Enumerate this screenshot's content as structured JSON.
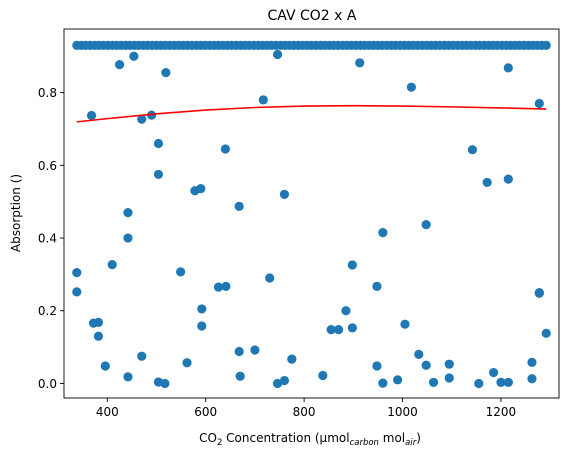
{
  "chart_data": {
    "type": "scatter",
    "title": "CAV CO2 x A",
    "xlabel": {
      "prefix": "CO",
      "sub1": "2",
      "mid": " Concentration (µmol",
      "sub2": "carbon",
      "mid2": " mol",
      "sub3": "air",
      "suffix": ")"
    },
    "ylabel": "Absorption ()",
    "xlim": [
      312,
      1318
    ],
    "ylim": [
      -0.04,
      0.975
    ],
    "xticks": [
      400,
      600,
      800,
      1000,
      1200
    ],
    "yticks": [
      0.0,
      0.2,
      0.4,
      0.6,
      0.8
    ],
    "ytick_labels": [
      "0.0",
      "0.2",
      "0.4",
      "0.6",
      "0.8"
    ],
    "colors": {
      "points": "#1f77b4",
      "fit_line": "#ff0000"
    },
    "saturation_level": 0.93,
    "saturation_x_range": [
      338,
      1292
    ],
    "saturation_step": 9,
    "points": [
      [
        338,
        0.305
      ],
      [
        338,
        0.252
      ],
      [
        368,
        0.737
      ],
      [
        372,
        0.166
      ],
      [
        382,
        0.168
      ],
      [
        382,
        0.13
      ],
      [
        396,
        0.048
      ],
      [
        410,
        0.327
      ],
      [
        425,
        0.877
      ],
      [
        442,
        0.47
      ],
      [
        442,
        0.4
      ],
      [
        442,
        0.018
      ],
      [
        454,
        0.9
      ],
      [
        470,
        0.727
      ],
      [
        470,
        0.075
      ],
      [
        490,
        0.738
      ],
      [
        504,
        0.66
      ],
      [
        504,
        0.575
      ],
      [
        504,
        0.004
      ],
      [
        517,
        0.0
      ],
      [
        519,
        0.855
      ],
      [
        549,
        0.307
      ],
      [
        562,
        0.057
      ],
      [
        578,
        0.53
      ],
      [
        590,
        0.536
      ],
      [
        592,
        0.205
      ],
      [
        592,
        0.158
      ],
      [
        626,
        0.265
      ],
      [
        640,
        0.645
      ],
      [
        641,
        0.267
      ],
      [
        668,
        0.487
      ],
      [
        668,
        0.088
      ],
      [
        670,
        0.02
      ],
      [
        700,
        0.092
      ],
      [
        717,
        0.78
      ],
      [
        730,
        0.29
      ],
      [
        746,
        0.905
      ],
      [
        746,
        0.0
      ],
      [
        760,
        0.52
      ],
      [
        760,
        0.008
      ],
      [
        775,
        0.067
      ],
      [
        838,
        0.022
      ],
      [
        855,
        0.148
      ],
      [
        870,
        0.148
      ],
      [
        885,
        0.2
      ],
      [
        898,
        0.326
      ],
      [
        898,
        0.153
      ],
      [
        913,
        0.882
      ],
      [
        948,
        0.267
      ],
      [
        948,
        0.048
      ],
      [
        960,
        0.415
      ],
      [
        960,
        0.001
      ],
      [
        990,
        0.01
      ],
      [
        1005,
        0.163
      ],
      [
        1018,
        0.815
      ],
      [
        1033,
        0.08
      ],
      [
        1048,
        0.437
      ],
      [
        1048,
        0.05
      ],
      [
        1063,
        0.003
      ],
      [
        1095,
        0.053
      ],
      [
        1095,
        0.015
      ],
      [
        1142,
        0.643
      ],
      [
        1155,
        0.0
      ],
      [
        1172,
        0.553
      ],
      [
        1185,
        0.03
      ],
      [
        1200,
        0.003
      ],
      [
        1215,
        0.868
      ],
      [
        1215,
        0.562
      ],
      [
        1215,
        0.003
      ],
      [
        1263,
        0.058
      ],
      [
        1263,
        0.013
      ],
      [
        1278,
        0.77
      ],
      [
        1278,
        0.25
      ],
      [
        1278,
        0.248
      ],
      [
        1292,
        0.138
      ]
    ],
    "fit_curve": [
      [
        338,
        0.7195
      ],
      [
        400,
        0.7285
      ],
      [
        500,
        0.7418
      ],
      [
        600,
        0.752
      ],
      [
        700,
        0.7591
      ],
      [
        800,
        0.763
      ],
      [
        900,
        0.764
      ],
      [
        1000,
        0.763
      ],
      [
        1100,
        0.7608
      ],
      [
        1200,
        0.758
      ],
      [
        1292,
        0.7548
      ]
    ]
  }
}
